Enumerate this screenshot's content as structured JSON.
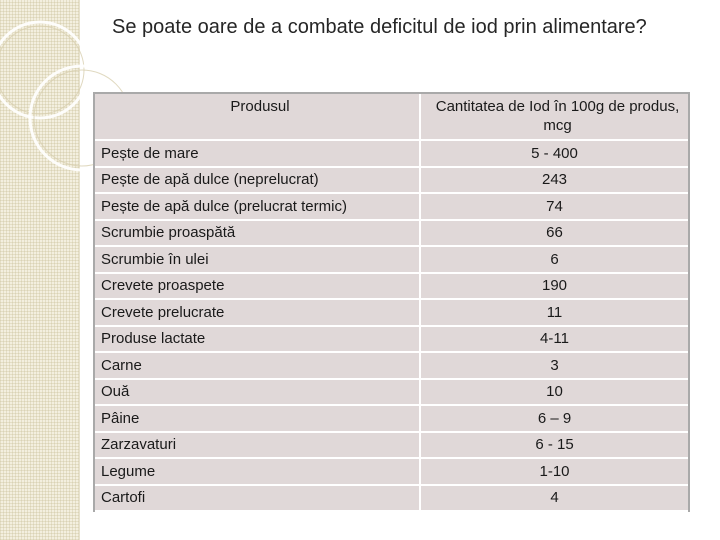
{
  "title": "Se poate oare de a combate deficitul de iod prin alimentare?",
  "table": {
    "headers": [
      "Produsul",
      "Cantitatea de Iod în 100g de produs, mcg"
    ],
    "rows": [
      {
        "product": "Pește de mare",
        "value": "5 - 400"
      },
      {
        "product": "Pește de apă dulce (neprelucrat)",
        "value": "243"
      },
      {
        "product": "Pește de apă dulce (prelucrat termic)",
        "value": "74"
      },
      {
        "product": "Scrumbie proaspătă",
        "value": "66"
      },
      {
        "product": "Scrumbie în ulei",
        "value": "6"
      },
      {
        "product": "Crevete proaspete",
        "value": "190"
      },
      {
        "product": "Crevete prelucrate",
        "value": "11"
      },
      {
        "product": "Produse lactate",
        "value": "4-11"
      },
      {
        "product": "Carne",
        "value": "3"
      },
      {
        "product": "Ouă",
        "value": "10"
      },
      {
        "product": "Pâine",
        "value": "6 – 9"
      },
      {
        "product": "Zarzavaturi",
        "value": "6 - 15"
      },
      {
        "product": "Legume",
        "value": "1-10"
      },
      {
        "product": "Cartofi",
        "value": "4"
      }
    ]
  },
  "colors": {
    "cell_background": "#e0d8d8",
    "table_border": "#a9a9a9",
    "side_band": "#f3efdf"
  }
}
